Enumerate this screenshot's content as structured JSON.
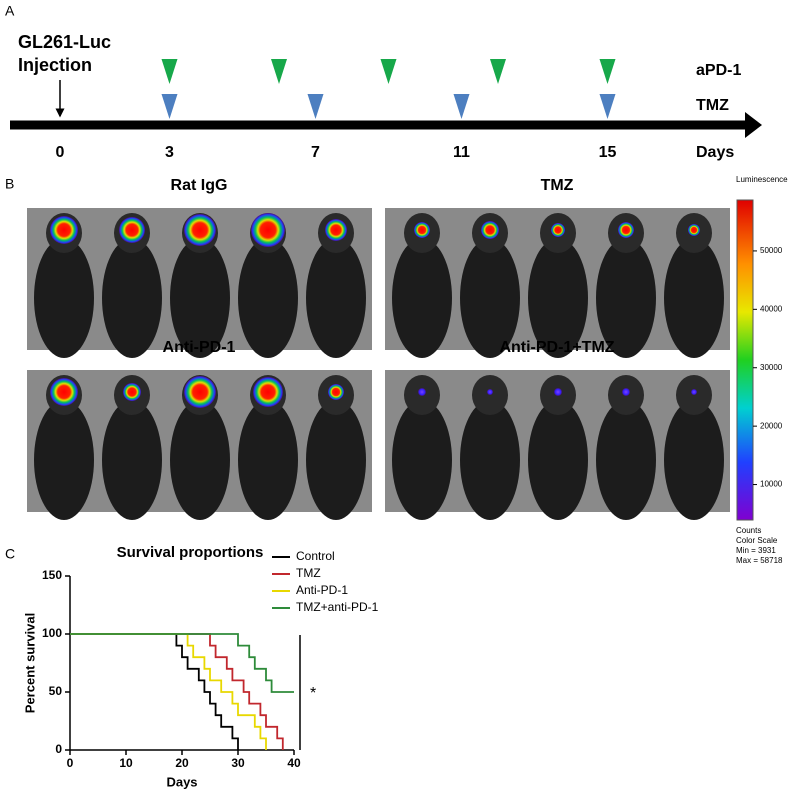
{
  "panels": {
    "a": "A",
    "b": "B",
    "c": "C"
  },
  "timeline": {
    "injection": [
      "GL261-Luc",
      "Injection"
    ],
    "ticks": [
      0,
      3,
      7,
      11,
      15
    ],
    "axis_label": "Days",
    "treatments": [
      {
        "name": "aPD-1",
        "color": "#17a84a",
        "days": [
          3,
          6,
          9,
          12,
          15
        ]
      },
      {
        "name": "TMZ",
        "color": "#4d7fc0",
        "days": [
          3,
          7,
          11,
          15
        ]
      }
    ]
  },
  "imaging": {
    "groups": [
      "Rat IgG",
      "TMZ",
      "Anti-PD-1",
      "Anti-PD-1+TMZ"
    ],
    "colorbar": {
      "title": "Luminescence",
      "ticks": [
        50000,
        40000,
        30000,
        20000,
        10000
      ],
      "unit": "Counts",
      "scale_label": "Color Scale",
      "min": {
        "value": 3931,
        "label": "Min = 3931"
      },
      "max": {
        "value": 58718,
        "label": "Max = 58718"
      }
    }
  },
  "chart_data": {
    "type": "step",
    "title": "Survival proportions",
    "x_label": "Days",
    "y_label": "Percent survival",
    "xlim": [
      0,
      40
    ],
    "xticks": [
      0,
      10,
      20,
      30,
      40
    ],
    "ylim": [
      0,
      150
    ],
    "yticks": [
      0,
      50,
      100,
      150
    ],
    "legend": "top-right",
    "series": [
      {
        "name": "Control",
        "color": "#000000",
        "x": [
          0,
          19,
          20,
          21,
          23,
          24,
          25,
          26,
          27,
          29,
          30
        ],
        "values": [
          100,
          90,
          80,
          70,
          60,
          50,
          40,
          30,
          20,
          10,
          0
        ]
      },
      {
        "name": "TMZ",
        "color": "#c1272d",
        "x": [
          0,
          25,
          26,
          28,
          29,
          31,
          32,
          34,
          35,
          37,
          38
        ],
        "values": [
          100,
          90,
          80,
          70,
          60,
          50,
          40,
          30,
          20,
          10,
          0
        ]
      },
      {
        "name": "Anti-PD-1",
        "color": "#e8d800",
        "x": [
          0,
          21,
          22,
          24,
          25,
          27,
          29,
          30,
          33,
          34,
          35
        ],
        "values": [
          100,
          90,
          80,
          70,
          60,
          50,
          40,
          30,
          20,
          10,
          0
        ]
      },
      {
        "name": "TMZ+anti-PD-1",
        "color": "#2e8b3a",
        "x": [
          0,
          30,
          32,
          33,
          35,
          36,
          40
        ],
        "values": [
          100,
          90,
          80,
          70,
          60,
          50,
          50
        ]
      }
    ],
    "annotation": "*"
  }
}
